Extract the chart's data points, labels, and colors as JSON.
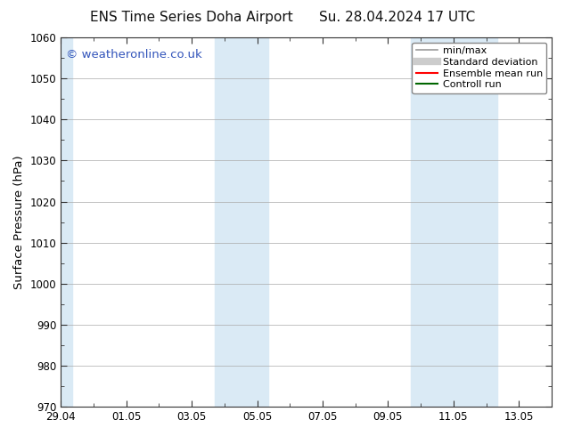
{
  "title": "ENS Time Series Doha Airport      Su. 28.04.2024 17 UTC",
  "ylabel": "Surface Pressure (hPa)",
  "ylim": [
    970,
    1060
  ],
  "yticks": [
    970,
    980,
    990,
    1000,
    1010,
    1020,
    1030,
    1040,
    1050,
    1060
  ],
  "xtick_labels": [
    "29.04",
    "01.05",
    "03.05",
    "05.05",
    "07.05",
    "09.05",
    "11.05",
    "13.05"
  ],
  "xtick_positions": [
    0,
    2,
    4,
    6,
    8,
    10,
    12,
    14
  ],
  "xlim": [
    0,
    15.0
  ],
  "shaded_regions": [
    {
      "x_start": -0.1,
      "x_end": 0.35
    },
    {
      "x_start": 4.7,
      "x_end": 6.35
    },
    {
      "x_start": 10.7,
      "x_end": 13.35
    }
  ],
  "background_color": "#ffffff",
  "plot_bg_color": "#ffffff",
  "shade_color": "#daeaf5",
  "watermark_text": "© weatheronline.co.uk",
  "watermark_color": "#3355bb",
  "legend_items": [
    {
      "label": "min/max",
      "color": "#999999",
      "lw": 1.2,
      "style": "solid"
    },
    {
      "label": "Standard deviation",
      "color": "#cccccc",
      "lw": 6,
      "style": "solid"
    },
    {
      "label": "Ensemble mean run",
      "color": "#ff0000",
      "lw": 1.5,
      "style": "solid"
    },
    {
      "label": "Controll run",
      "color": "#006600",
      "lw": 1.5,
      "style": "solid"
    }
  ],
  "title_fontsize": 11,
  "tick_fontsize": 8.5,
  "label_fontsize": 9.5,
  "watermark_fontsize": 9.5
}
